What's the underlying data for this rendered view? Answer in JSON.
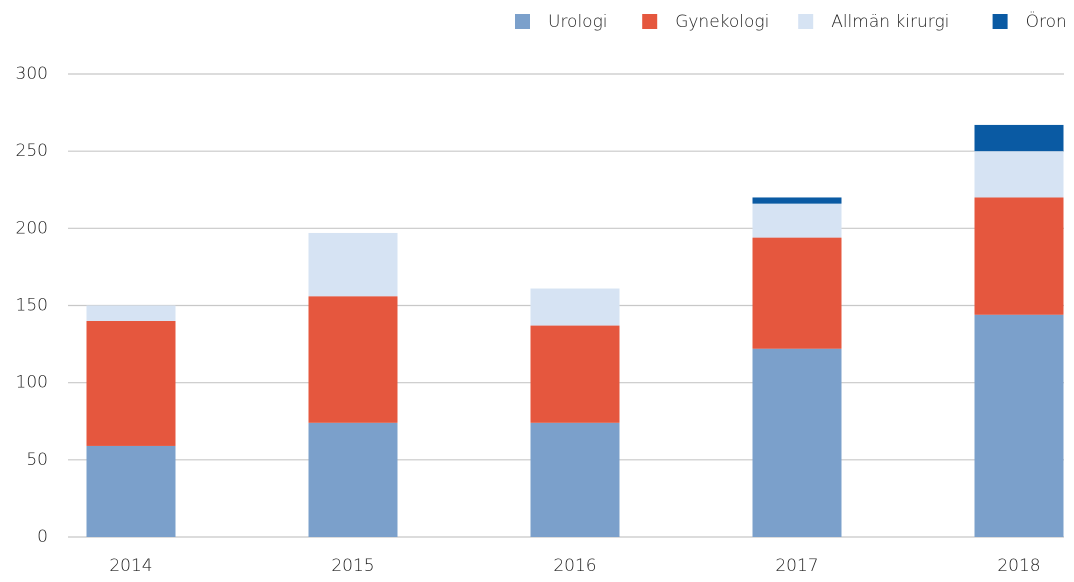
{
  "chart_data": {
    "type": "stacked_bar",
    "categories": [
      "2014",
      "2015",
      "2016",
      "2017",
      "2018"
    ],
    "series": [
      {
        "name": "Urologi",
        "color": "#7ba0cb",
        "values": [
          59,
          74,
          74,
          122,
          144
        ]
      },
      {
        "name": "Gynekologi",
        "color": "#e5573e",
        "values": [
          81,
          82,
          63,
          72,
          76
        ]
      },
      {
        "name": "Allmän kirurgi",
        "color": "#d6e3f3",
        "values": [
          10,
          41,
          24,
          22,
          30
        ]
      },
      {
        "name": "Öron",
        "color": "#0a5aa3",
        "values": [
          0,
          0,
          0,
          4,
          17
        ]
      }
    ],
    "ylim": [
      0,
      300
    ],
    "yticks": [
      0,
      50,
      100,
      150,
      200,
      250,
      300
    ],
    "grid": true,
    "legend": "top-right"
  }
}
